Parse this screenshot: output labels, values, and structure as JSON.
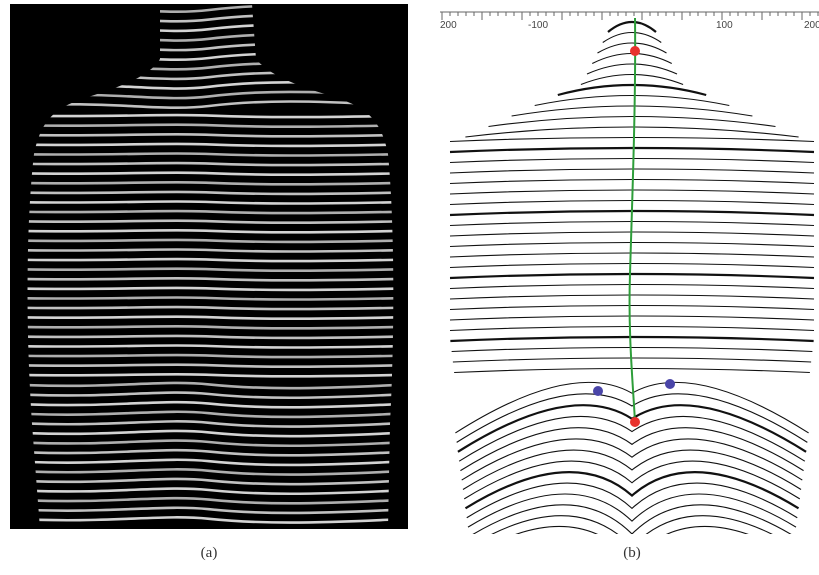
{
  "figure": {
    "panel_a": {
      "caption": "(a)"
    },
    "panel_b": {
      "caption": "(b)",
      "ruler_ticks": [
        "200",
        "-100",
        "100",
        "200"
      ]
    }
  },
  "colors": {
    "spine_line": "#2e9e3a",
    "landmark_red": "#e8322d",
    "landmark_blue": "#4a45a8"
  }
}
